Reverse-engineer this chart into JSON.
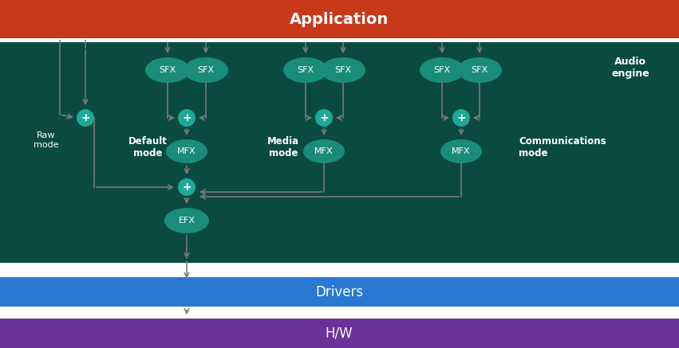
{
  "bg_app": "#C8391A",
  "bg_engine": "#0A4A3F",
  "bg_drivers": "#2979D4",
  "bg_hw": "#6B3199",
  "teal_ellipse": "#1A8C7C",
  "teal_circle": "#1DA898",
  "arrow_color": "#7A7A7A",
  "app_label": "Application",
  "engine_label": "Audio\nengine",
  "drivers_label": "Drivers",
  "hw_label": "H/W",
  "raw_mode": "Raw\nmode",
  "default_mode": "Default\nmode",
  "media_mode": "Media\nmode",
  "comms_mode": "Communications\nmode",
  "fig_w": 8.51,
  "fig_h": 4.37,
  "dpi": 100
}
